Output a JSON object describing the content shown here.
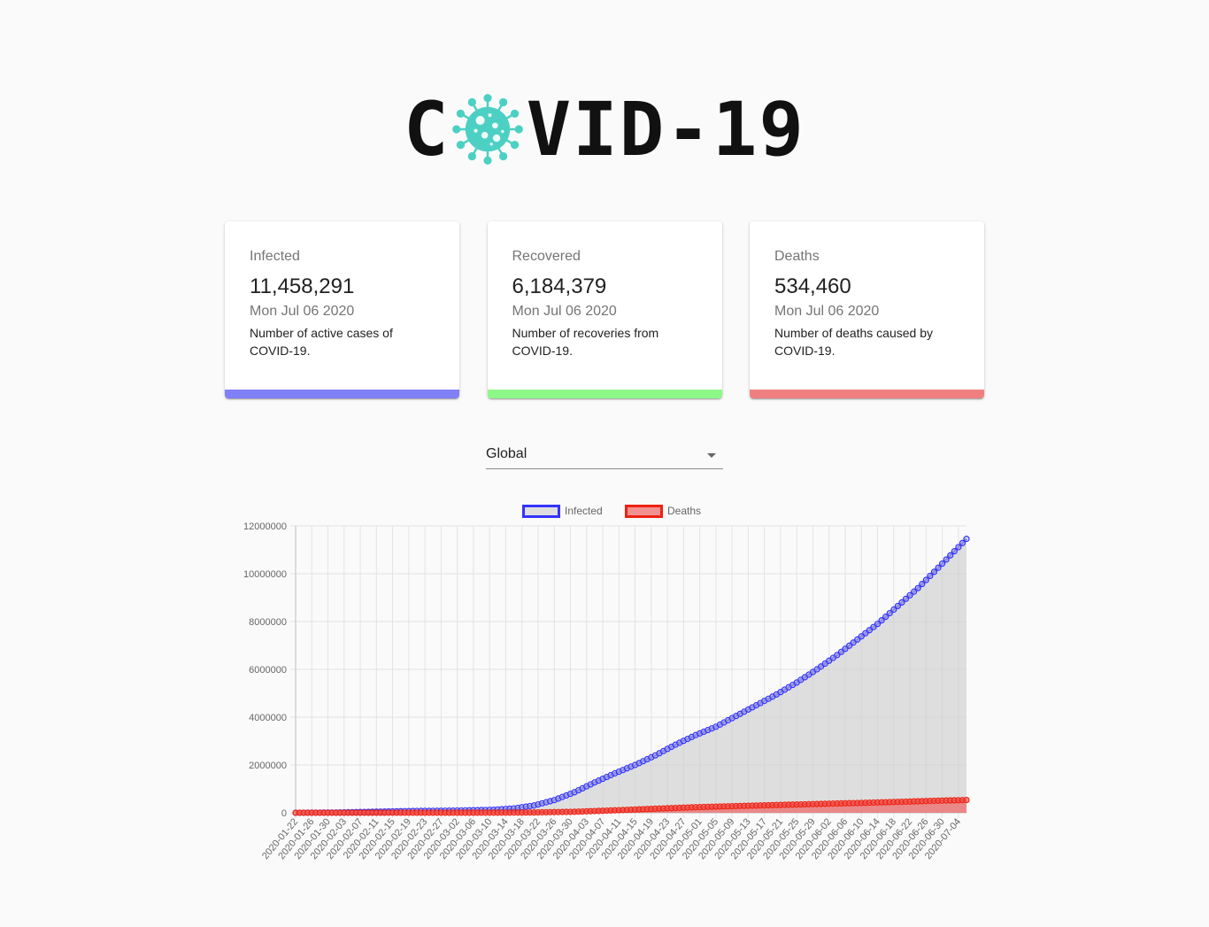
{
  "app": {
    "logo_text_left": "C",
    "logo_text_right": "VID-19",
    "logo_icon": "virus-icon",
    "logo_icon_color": "#4dd0c4"
  },
  "cards": [
    {
      "title": "Infected",
      "value": "11,458,291",
      "date": "Mon Jul 06 2020",
      "description": "Number of active cases of COVID-19.",
      "bar_color": "#8080f7"
    },
    {
      "title": "Recovered",
      "value": "6,184,379",
      "date": "Mon Jul 06 2020",
      "description": "Number of recoveries from COVID-19.",
      "bar_color": "#8ef78a"
    },
    {
      "title": "Deaths",
      "value": "534,460",
      "date": "Mon Jul 06 2020",
      "description": "Number of deaths caused by COVID-19.",
      "bar_color": "#f08080"
    }
  ],
  "country_select": {
    "selected": "Global",
    "icon": "arrow-drop-down-icon"
  },
  "chart_data": {
    "type": "line",
    "title": "",
    "xlabel": "",
    "ylabel": "",
    "ylim": [
      0,
      12000000
    ],
    "y_ticks": [
      0,
      2000000,
      4000000,
      6000000,
      8000000,
      10000000,
      12000000
    ],
    "x_tick_labels": [
      "2020-01-22",
      "2020-01-26",
      "2020-01-30",
      "2020-02-03",
      "2020-02-07",
      "2020-02-11",
      "2020-02-15",
      "2020-02-19",
      "2020-02-23",
      "2020-02-27",
      "2020-03-02",
      "2020-03-06",
      "2020-03-10",
      "2020-03-14",
      "2020-03-18",
      "2020-03-22",
      "2020-03-26",
      "2020-03-30",
      "2020-04-03",
      "2020-04-07",
      "2020-04-11",
      "2020-04-15",
      "2020-04-19",
      "2020-04-23",
      "2020-04-27",
      "2020-05-01",
      "2020-05-05",
      "2020-05-09",
      "2020-05-13",
      "2020-05-17",
      "2020-05-21",
      "2020-05-25",
      "2020-05-29",
      "2020-06-02",
      "2020-06-06",
      "2020-06-10",
      "2020-06-14",
      "2020-06-18",
      "2020-06-22",
      "2020-06-26",
      "2020-06-30",
      "2020-07-04"
    ],
    "grid": true,
    "legend_position": "top",
    "series": [
      {
        "name": "Infected",
        "color": "#3333ff",
        "fill": "rgba(204,204,204,0.6)",
        "points": [
          [
            "2020-01-22",
            555
          ],
          [
            "2020-02-01",
            12000
          ],
          [
            "2020-02-11",
            45000
          ],
          [
            "2020-02-21",
            76000
          ],
          [
            "2020-03-01",
            88000
          ],
          [
            "2020-03-11",
            126000
          ],
          [
            "2020-03-16",
            182000
          ],
          [
            "2020-03-21",
            305000
          ],
          [
            "2020-03-26",
            530000
          ],
          [
            "2020-03-31",
            860000
          ],
          [
            "2020-04-05",
            1270000
          ],
          [
            "2020-04-10",
            1650000
          ],
          [
            "2020-04-15",
            2000000
          ],
          [
            "2020-04-20",
            2400000
          ],
          [
            "2020-04-25",
            2850000
          ],
          [
            "2020-04-30",
            3250000
          ],
          [
            "2020-05-05",
            3600000
          ],
          [
            "2020-05-10",
            4050000
          ],
          [
            "2020-05-15",
            4500000
          ],
          [
            "2020-05-20",
            4950000
          ],
          [
            "2020-05-25",
            5450000
          ],
          [
            "2020-05-30",
            6000000
          ],
          [
            "2020-06-04",
            6600000
          ],
          [
            "2020-06-09",
            7250000
          ],
          [
            "2020-06-14",
            7900000
          ],
          [
            "2020-06-19",
            8650000
          ],
          [
            "2020-06-24",
            9400000
          ],
          [
            "2020-06-29",
            10250000
          ],
          [
            "2020-07-06",
            11458291
          ]
        ]
      },
      {
        "name": "Deaths",
        "color": "#ee2211",
        "fill": "rgba(240,100,100,0.7)",
        "points": [
          [
            "2020-01-22",
            17
          ],
          [
            "2020-02-11",
            1100
          ],
          [
            "2020-03-01",
            3000
          ],
          [
            "2020-03-11",
            4600
          ],
          [
            "2020-03-21",
            13000
          ],
          [
            "2020-03-31",
            42000
          ],
          [
            "2020-04-10",
            102000
          ],
          [
            "2020-04-20",
            170000
          ],
          [
            "2020-04-30",
            233000
          ],
          [
            "2020-05-10",
            280000
          ],
          [
            "2020-05-20",
            325000
          ],
          [
            "2020-05-30",
            367000
          ],
          [
            "2020-06-09",
            410000
          ],
          [
            "2020-06-19",
            456000
          ],
          [
            "2020-06-29",
            505000
          ],
          [
            "2020-07-06",
            534460
          ]
        ]
      }
    ]
  }
}
